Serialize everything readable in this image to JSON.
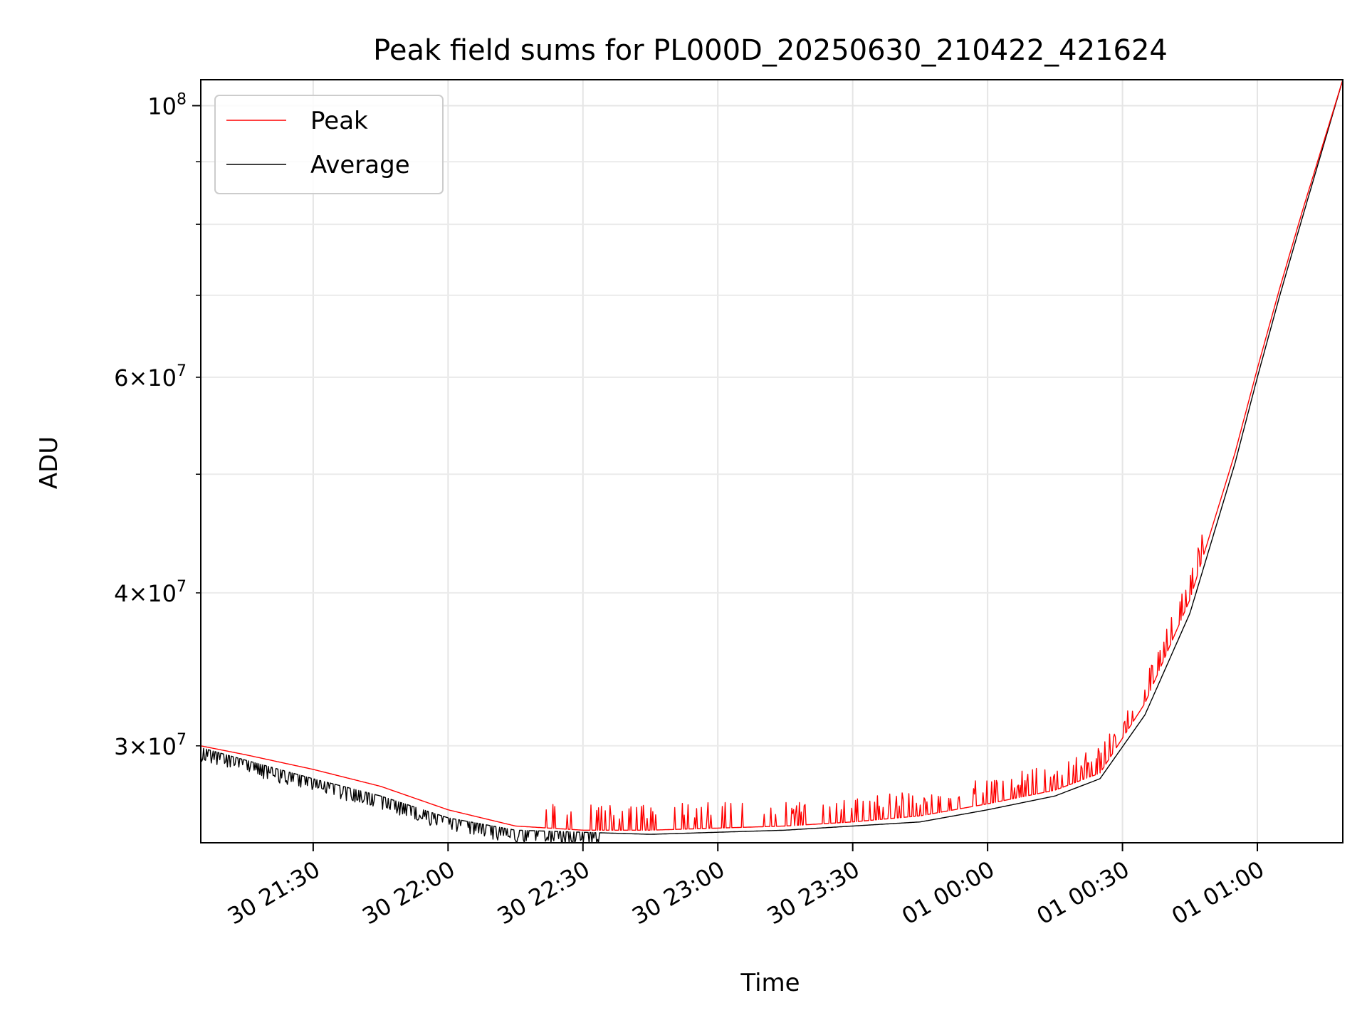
{
  "chart_data": {
    "type": "line",
    "title": "Peak field sums for PL000D_20250630_210422_421624",
    "xlabel": "Time",
    "ylabel": "ADU",
    "xscale": "time",
    "yscale": "log",
    "xlim": [
      "2025-06-30 21:05",
      "2025-07-01 01:19"
    ],
    "ylim": [
      25000000,
      105000000
    ],
    "x_ticks": [
      {
        "value": "2025-06-30 21:30",
        "label": "30 21:30"
      },
      {
        "value": "2025-06-30 22:00",
        "label": "30 22:00"
      },
      {
        "value": "2025-06-30 22:30",
        "label": "30 22:30"
      },
      {
        "value": "2025-06-30 23:00",
        "label": "30 23:00"
      },
      {
        "value": "2025-06-30 23:30",
        "label": "30 23:30"
      },
      {
        "value": "2025-07-01 00:00",
        "label": "01 00:00"
      },
      {
        "value": "2025-07-01 00:30",
        "label": "01 00:30"
      },
      {
        "value": "2025-07-01 01:00",
        "label": "01 01:00"
      }
    ],
    "y_major_ticks": [
      {
        "value": 100000000,
        "base": "10",
        "exp": "8"
      }
    ],
    "y_minor_ticks": [
      {
        "value": 30000000,
        "mant": "3",
        "base": "10",
        "exp": "7"
      },
      {
        "value": 40000000,
        "mant": "4",
        "base": "10",
        "exp": "7"
      },
      {
        "value": 50000000
      },
      {
        "value": 60000000,
        "mant": "6",
        "base": "10",
        "exp": "7"
      },
      {
        "value": 70000000
      },
      {
        "value": 80000000
      },
      {
        "value": 90000000
      }
    ],
    "grid": true,
    "legend_position": "upper-left",
    "series": [
      {
        "name": "Peak",
        "color": "#ff0000",
        "x": [
          "2025-06-30 21:05",
          "2025-06-30 21:15",
          "2025-06-30 21:30",
          "2025-06-30 21:45",
          "2025-06-30 22:00",
          "2025-06-30 22:15",
          "2025-06-30 22:30",
          "2025-06-30 22:45",
          "2025-06-30 23:00",
          "2025-06-30 23:15",
          "2025-06-30 23:30",
          "2025-06-30 23:45",
          "2025-07-01 00:00",
          "2025-07-01 00:15",
          "2025-07-01 00:25",
          "2025-07-01 00:35",
          "2025-07-01 00:45",
          "2025-07-01 00:55",
          "2025-07-01 01:00",
          "2025-07-01 01:05",
          "2025-07-01 01:10",
          "2025-07-01 01:19"
        ],
        "values": [
          30000000,
          29500000,
          28700000,
          27800000,
          26600000,
          25800000,
          25600000,
          25600000,
          25700000,
          25800000,
          26000000,
          26300000,
          26900000,
          27600000,
          28500000,
          32500000,
          39500000,
          52000000,
          61000000,
          71000000,
          82000000,
          105000000
        ]
      },
      {
        "name": "Average",
        "color": "#000000",
        "x": [
          "2025-06-30 21:05",
          "2025-06-30 21:15",
          "2025-06-30 21:30",
          "2025-06-30 21:45",
          "2025-06-30 22:00",
          "2025-06-30 22:15",
          "2025-06-30 22:30",
          "2025-06-30 22:45",
          "2025-06-30 23:00",
          "2025-06-30 23:15",
          "2025-06-30 23:30",
          "2025-06-30 23:45",
          "2025-07-01 00:00",
          "2025-07-01 00:15",
          "2025-07-01 00:25",
          "2025-07-01 00:35",
          "2025-07-01 00:45",
          "2025-07-01 00:55",
          "2025-07-01 01:00",
          "2025-07-01 01:05",
          "2025-07-01 01:10",
          "2025-07-01 01:19"
        ],
        "values": [
          29900000,
          29200000,
          28200000,
          27300000,
          26200000,
          25600000,
          25500000,
          25400000,
          25500000,
          25600000,
          25800000,
          26000000,
          26600000,
          27300000,
          28200000,
          31800000,
          38500000,
          51000000,
          60000000,
          70000000,
          81000000,
          105000000
        ]
      }
    ]
  }
}
